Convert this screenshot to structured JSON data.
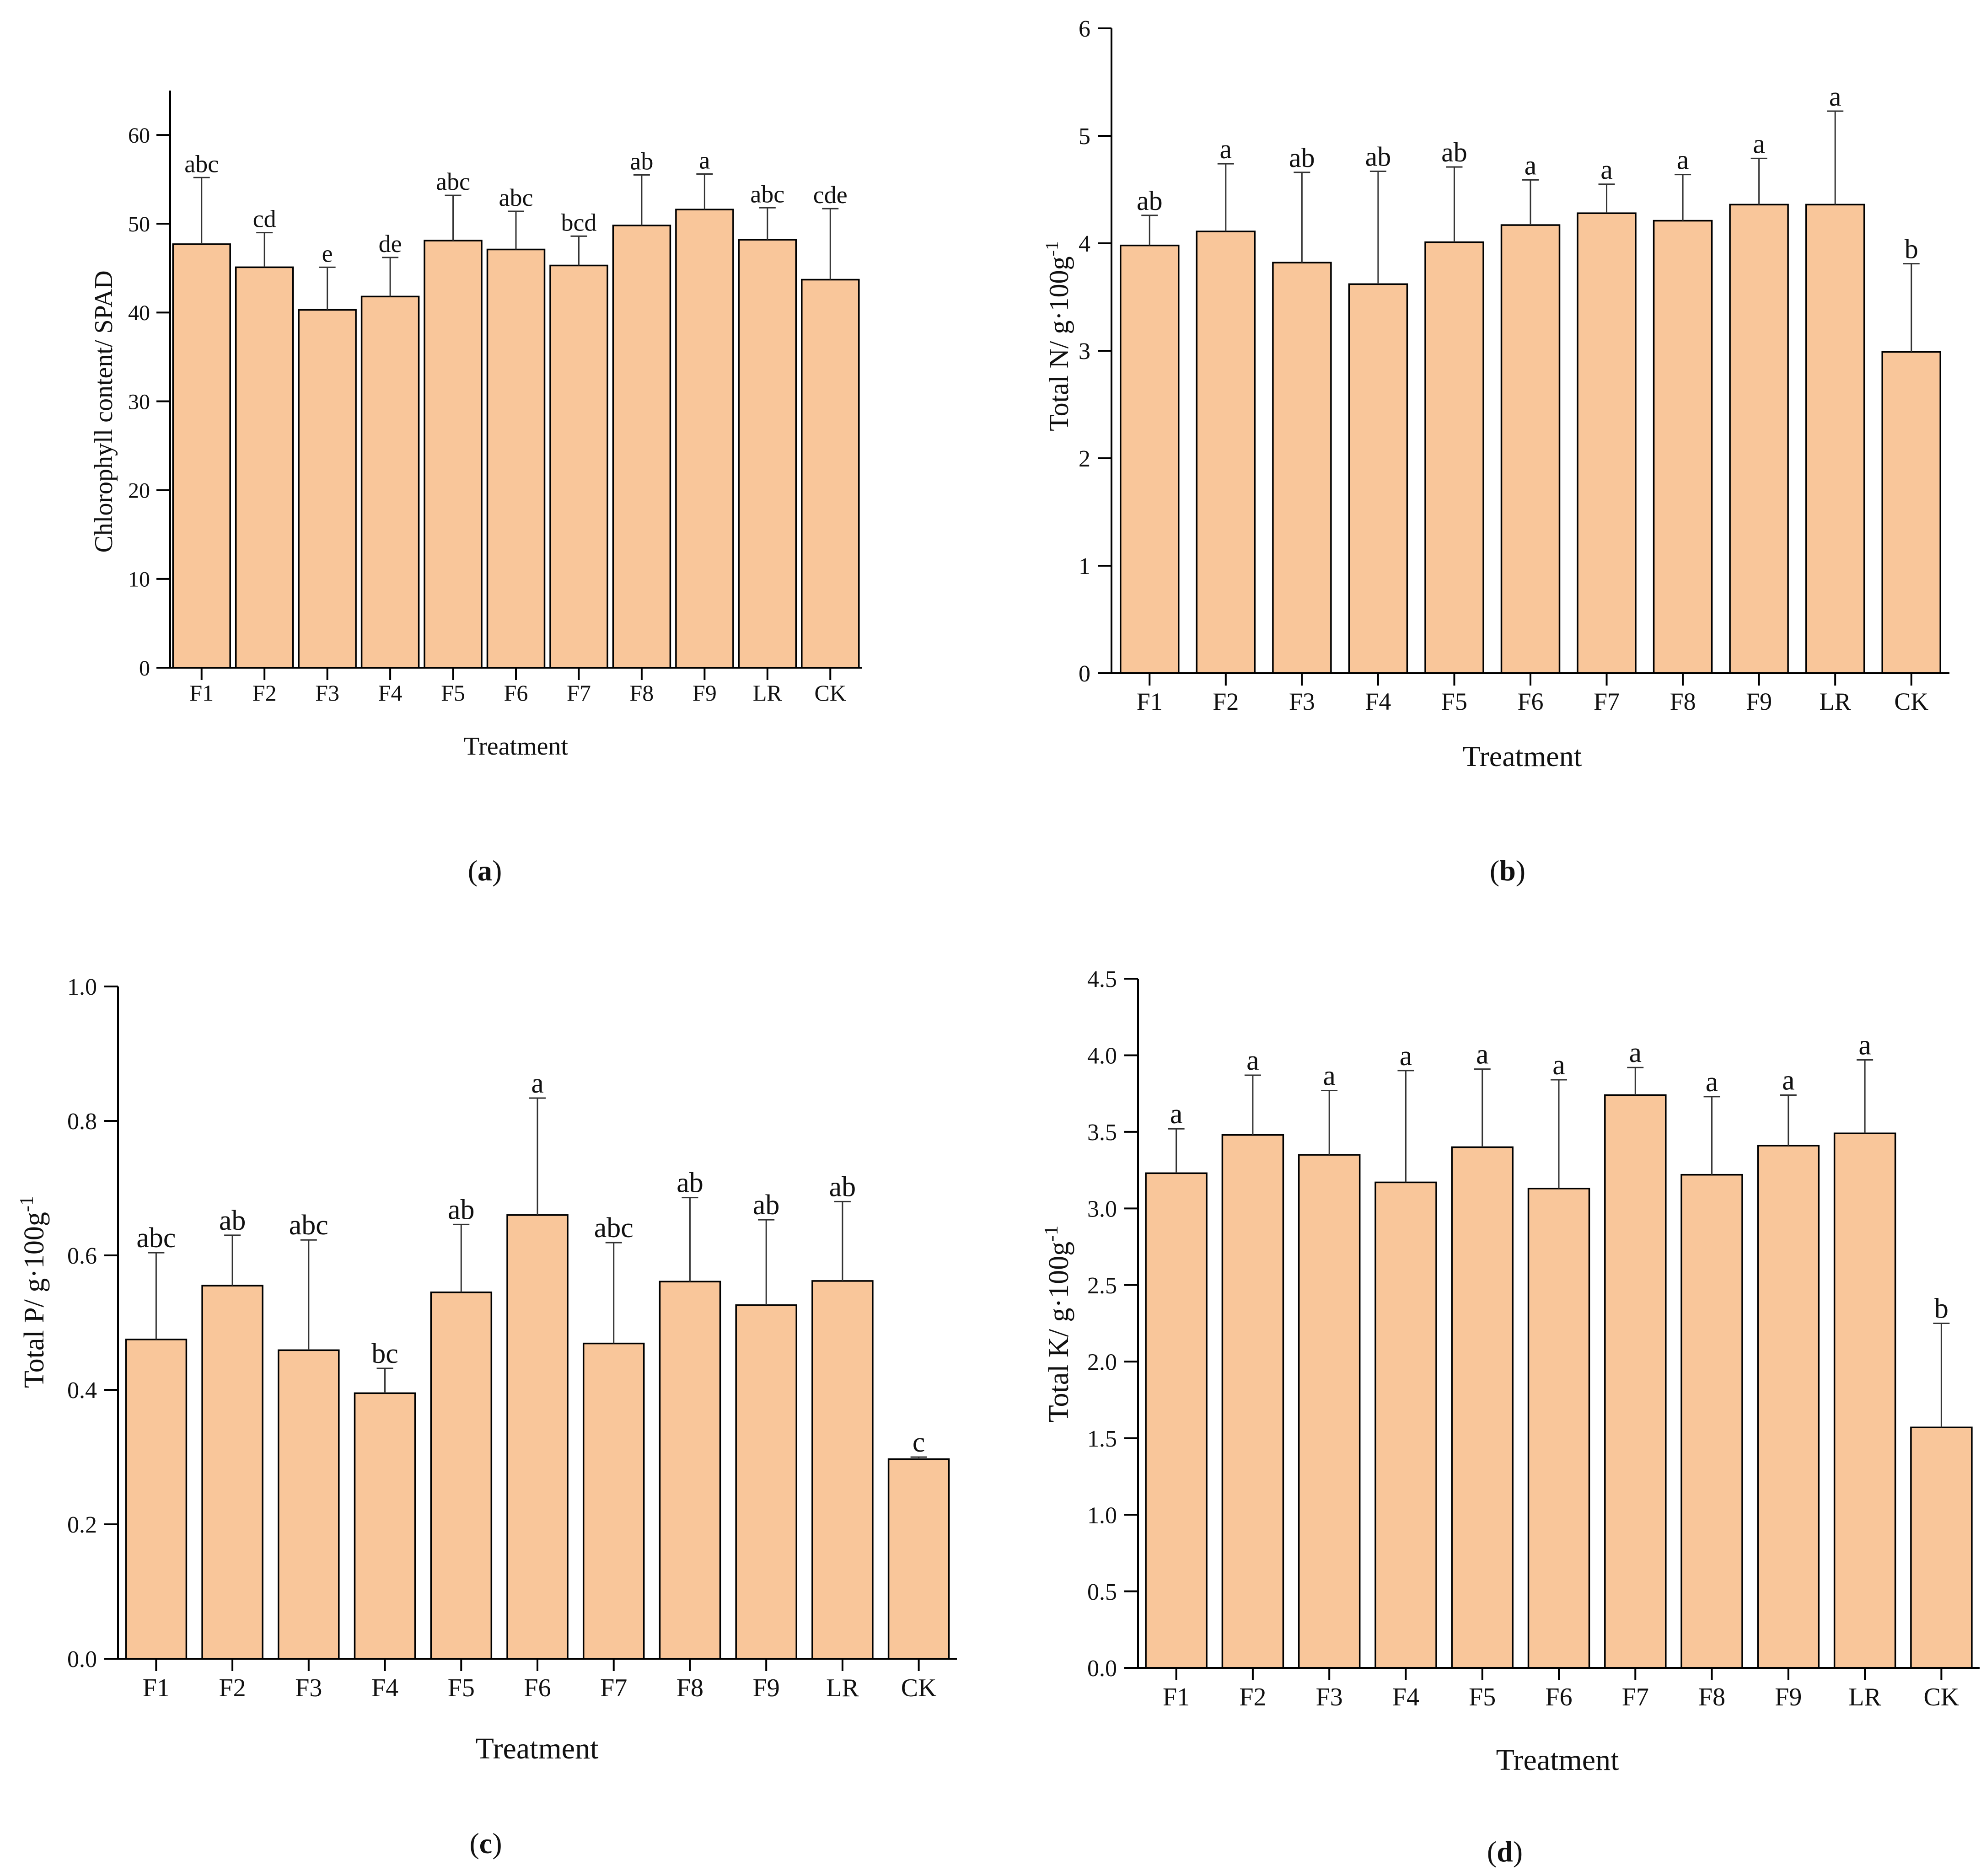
{
  "figure": {
    "bar_color": "#F9C69A",
    "bar_edge_color": "#000000",
    "panel_labels": [
      {
        "open": "(",
        "letter": "a",
        "close": ")"
      },
      {
        "open": "(",
        "letter": "b",
        "close": ")"
      },
      {
        "open": "(",
        "letter": "c",
        "close": ")"
      },
      {
        "open": "(",
        "letter": "d",
        "close": ")"
      }
    ]
  },
  "chart_data": [
    {
      "type": "bar",
      "title": "",
      "xlabel": "Treatment",
      "ylabel": "Chlorophyll content/ SPAD",
      "ylim": [
        0,
        65
      ],
      "yticks": [
        0,
        10,
        20,
        30,
        40,
        50,
        60
      ],
      "ytick_labels": [
        "0",
        "10",
        "20",
        "30",
        "40",
        "50",
        "60"
      ],
      "categories": [
        "F1",
        "F2",
        "F3",
        "F4",
        "F5",
        "F6",
        "F7",
        "F8",
        "F9",
        "LR",
        "CK"
      ],
      "values": [
        47.7,
        45.1,
        40.3,
        41.8,
        48.1,
        47.1,
        45.3,
        49.8,
        51.6,
        48.2,
        43.7
      ],
      "error_upper": [
        55.2,
        49.0,
        45.1,
        46.2,
        53.2,
        51.4,
        48.6,
        55.5,
        55.6,
        51.8,
        51.7
      ],
      "significance": [
        "abc",
        "cd",
        "e",
        "de",
        "abc",
        "abc",
        "bcd",
        "ab",
        "a",
        "abc",
        "cde"
      ]
    },
    {
      "type": "bar",
      "title": "",
      "xlabel": "Treatment",
      "ylabel": "Total N/ g·100g",
      "ylabel_superscript": "-1",
      "ylim": [
        0,
        6
      ],
      "yticks": [
        0,
        1,
        2,
        3,
        4,
        5,
        6
      ],
      "ytick_labels": [
        "0",
        "1",
        "2",
        "3",
        "4",
        "5",
        "6"
      ],
      "categories": [
        "F1",
        "F2",
        "F3",
        "F4",
        "F5",
        "F6",
        "F7",
        "F8",
        "F9",
        "LR",
        "CK"
      ],
      "values": [
        3.98,
        4.11,
        3.82,
        3.62,
        4.01,
        4.17,
        4.28,
        4.21,
        4.36,
        4.36,
        2.99
      ],
      "error_upper": [
        4.26,
        4.74,
        4.66,
        4.67,
        4.71,
        4.59,
        4.55,
        4.64,
        4.79,
        5.23,
        3.81
      ],
      "significance": [
        "ab",
        "a",
        "ab",
        "ab",
        "ab",
        "a",
        "a",
        "a",
        "a",
        "a",
        "b"
      ]
    },
    {
      "type": "bar",
      "title": "",
      "xlabel": "Treatment",
      "ylabel": "Total P/ g·100g",
      "ylabel_superscript": "-1",
      "ylim": [
        0,
        1.0
      ],
      "yticks": [
        0,
        0.2,
        0.4,
        0.6,
        0.8,
        1.0
      ],
      "ytick_labels": [
        "0.0",
        "0.2",
        "0.4",
        "0.6",
        "0.8",
        "1.0"
      ],
      "categories": [
        "F1",
        "F2",
        "F3",
        "F4",
        "F5",
        "F6",
        "F7",
        "F8",
        "F9",
        "LR",
        "CK"
      ],
      "values": [
        0.475,
        0.555,
        0.459,
        0.395,
        0.545,
        0.66,
        0.469,
        0.561,
        0.526,
        0.562,
        0.297
      ],
      "error_upper": [
        0.604,
        0.63,
        0.623,
        0.432,
        0.646,
        0.834,
        0.619,
        0.686,
        0.653,
        0.68,
        0.3
      ],
      "significance": [
        "abc",
        "ab",
        "abc",
        "bc",
        "ab",
        "a",
        "abc",
        "ab",
        "ab",
        "ab",
        "c"
      ]
    },
    {
      "type": "bar",
      "title": "",
      "xlabel": "Treatment",
      "ylabel": "Total K/ g·100g",
      "ylabel_superscript": "-1",
      "ylim": [
        0,
        4.5
      ],
      "yticks": [
        0,
        0.5,
        1.0,
        1.5,
        2.0,
        2.5,
        3.0,
        3.5,
        4.0,
        4.5
      ],
      "ytick_labels": [
        "0.0",
        "0.5",
        "1.0",
        "1.5",
        "2.0",
        "2.5",
        "3.0",
        "3.5",
        "4.0",
        "4.5"
      ],
      "categories": [
        "F1",
        "F2",
        "F3",
        "F4",
        "F5",
        "F6",
        "F7",
        "F8",
        "F9",
        "LR",
        "CK"
      ],
      "values": [
        3.23,
        3.48,
        3.35,
        3.17,
        3.4,
        3.13,
        3.74,
        3.22,
        3.41,
        3.49,
        1.57
      ],
      "error_upper": [
        3.52,
        3.87,
        3.77,
        3.9,
        3.91,
        3.84,
        3.92,
        3.73,
        3.74,
        3.97,
        2.25
      ],
      "significance": [
        "a",
        "a",
        "a",
        "a",
        "a",
        "a",
        "a",
        "a",
        "a",
        "a",
        "b"
      ]
    }
  ]
}
